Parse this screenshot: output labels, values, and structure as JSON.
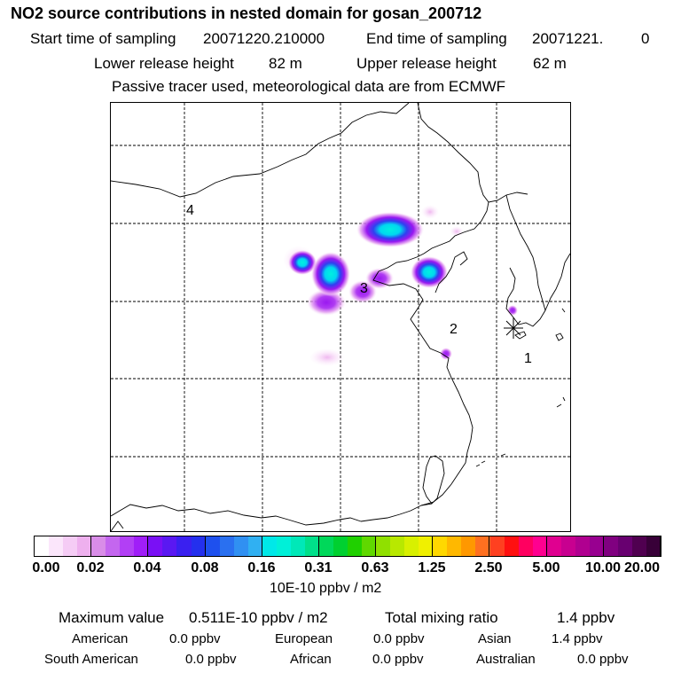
{
  "header": {
    "title": "NO2 source contributions in nested domain for gosan_200712",
    "start_label": "Start time of sampling",
    "start_value": "20071220.210000",
    "end_label": "End time of sampling",
    "end_value": "20071221.",
    "end_suffix": "0",
    "lower_label": "Lower release height",
    "lower_value": "82 m",
    "upper_label": "Upper release height",
    "upper_value": "62 m",
    "note": "Passive tracer used, meteorological data are from ECMWF"
  },
  "map": {
    "markers": [
      {
        "label": "1",
        "name": "receptor-gosan"
      },
      {
        "label": "2",
        "name": "marker-2"
      },
      {
        "label": "3",
        "name": "marker-3"
      },
      {
        "label": "4",
        "name": "marker-4"
      }
    ]
  },
  "legend": {
    "ticks": [
      "0.00",
      "0.02",
      "0.04",
      "0.08",
      "0.16",
      "0.31",
      "0.63",
      "1.25",
      "2.50",
      "5.00",
      "10.00",
      "20.00"
    ],
    "unit": "10E-10 ppbv / m2",
    "colors": [
      "#ffffff",
      "#fbe6fb",
      "#f5ccf5",
      "#eeb0ee",
      "#d98de8",
      "#c466ef",
      "#b23ff5",
      "#a01ef8",
      "#7a10f5",
      "#5a18f2",
      "#3a20f0",
      "#2430ee",
      "#1e50ee",
      "#2a70f0",
      "#3090f2",
      "#30b0f2",
      "#00e8e8",
      "#00f0d8",
      "#00e8b8",
      "#00e08a",
      "#00d85a",
      "#00d030",
      "#20d000",
      "#60d800",
      "#90e000",
      "#b8e800",
      "#d8f000",
      "#f0f000",
      "#ffd800",
      "#ffb800",
      "#ff9800",
      "#ff7020",
      "#ff4020",
      "#ff1010",
      "#ff0060",
      "#ff0090",
      "#e00090",
      "#c80090",
      "#b00090",
      "#980090",
      "#800080",
      "#680070",
      "#500050",
      "#380038"
    ]
  },
  "stats": {
    "max_label": "Maximum value",
    "max_value": "0.511E-10 ppbv / m2",
    "total_label": "Total mixing ratio",
    "total_value": "1.4 ppbv",
    "regions": [
      {
        "name": "American",
        "value": "0.0 ppbv"
      },
      {
        "name": "European",
        "value": "0.0 ppbv"
      },
      {
        "name": "Asian",
        "value": "1.4 ppbv"
      },
      {
        "name": "South American",
        "value": "0.0 ppbv"
      },
      {
        "name": "African",
        "value": "0.0 ppbv"
      },
      {
        "name": "Australian",
        "value": "0.0 ppbv"
      }
    ]
  }
}
